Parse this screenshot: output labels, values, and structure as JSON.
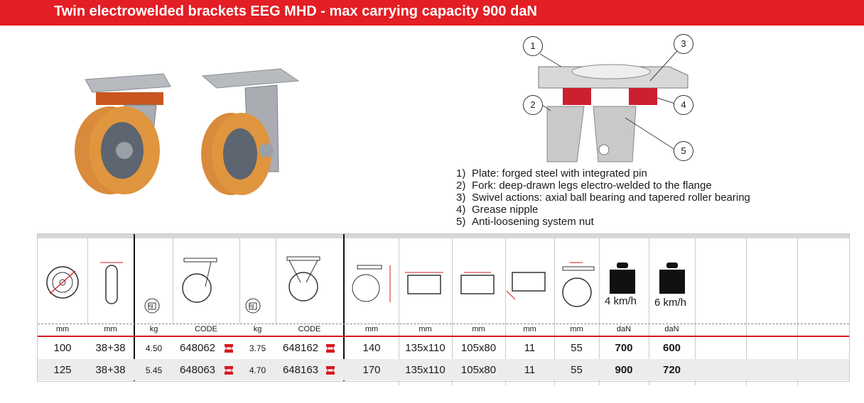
{
  "header": {
    "title": "Twin electrowelded brackets EEG MHD - max carrying capacity 900 daN"
  },
  "diagram": {
    "callouts": [
      "1",
      "2",
      "3",
      "4",
      "5"
    ]
  },
  "legend": {
    "items": [
      {
        "num": "1)",
        "text": "Plate: forged steel with integrated pin"
      },
      {
        "num": "2)",
        "text": "Fork:  deep-drawn legs electro-welded to the flange"
      },
      {
        "num": "3)",
        "text": "Swivel actions: axial ball bearing and tapered roller bearing"
      },
      {
        "num": "4)",
        "text": "Grease nipple"
      },
      {
        "num": "5)",
        "text": "Anti-loosening system nut"
      }
    ]
  },
  "table": {
    "speed_labels": {
      "s4": "4 km/h",
      "s6": "6 km/h"
    },
    "weight_icon_text": "kg",
    "units": [
      "mm",
      "mm",
      "kg",
      "CODE",
      "kg",
      "CODE",
      "mm",
      "mm",
      "mm",
      "mm",
      "mm",
      "daN",
      "daN"
    ],
    "rows": [
      {
        "diameter": "100",
        "width": "38+38",
        "swivel_kg": "4.50",
        "swivel_code": "648062",
        "fixed_kg": "3.75",
        "fixed_code": "648162",
        "height": "140",
        "plate": "135x110",
        "holes": "105x80",
        "hole_d": "11",
        "offset": "55",
        "cap4": "700",
        "cap6": "600"
      },
      {
        "diameter": "125",
        "width": "38+38",
        "swivel_kg": "5.45",
        "swivel_code": "648063",
        "fixed_kg": "4.70",
        "fixed_code": "648163",
        "height": "170",
        "plate": "135x110",
        "holes": "105x80",
        "hole_d": "11",
        "offset": "55",
        "cap4": "900",
        "cap6": "720"
      }
    ]
  },
  "colors": {
    "brand_red": "#e31e24",
    "wheel_orange": "#d98a3a"
  }
}
